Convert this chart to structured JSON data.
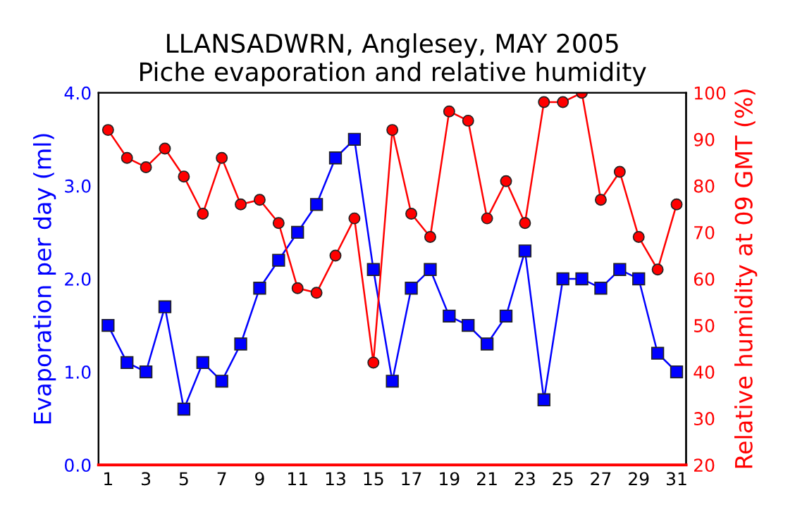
{
  "chart_data": {
    "type": "line",
    "title": "LLANSADWRN, Anglesey, MAY 2005\nPiche evaporation and relative humidity",
    "xlabel": null,
    "ylabel": "Evaporation per day (ml)",
    "y2label": "Relative humidity at 09 GMT (%)",
    "x": [
      1,
      2,
      3,
      4,
      5,
      6,
      7,
      8,
      9,
      10,
      11,
      12,
      13,
      14,
      15,
      16,
      17,
      18,
      19,
      20,
      21,
      22,
      23,
      24,
      25,
      26,
      27,
      28,
      29,
      30,
      31
    ],
    "xlim": [
      0.5,
      31.5
    ],
    "xticks": [
      1,
      3,
      5,
      7,
      9,
      11,
      13,
      15,
      17,
      19,
      21,
      23,
      25,
      27,
      29,
      31
    ],
    "ylim": [
      0,
      4
    ],
    "yticks": [
      {
        "value": 0,
        "label": "0.0"
      },
      {
        "value": 1,
        "label": "1.0"
      },
      {
        "value": 2,
        "label": "2.0"
      },
      {
        "value": 3,
        "label": "3.0"
      },
      {
        "value": 4,
        "label": "4.0"
      }
    ],
    "y2lim": [
      20,
      100
    ],
    "y2ticks": [
      20,
      30,
      40,
      50,
      60,
      70,
      80,
      90,
      100
    ],
    "grid": false,
    "legend": false,
    "series": [
      {
        "color": "#0000ff",
        "marker": "square",
        "values": [
          1.5,
          1.1,
          1.0,
          1.7,
          0.6,
          1.1,
          0.9,
          1.3,
          1.9,
          2.2,
          2.5,
          2.8,
          3.3,
          3.5,
          2.1,
          0.9,
          1.9,
          2.1,
          1.6,
          1.5,
          1.3,
          1.6,
          2.3,
          0.7,
          2.0,
          2.0,
          1.9,
          2.1,
          2.0,
          1.2,
          1.0
        ]
      },
      {
        "color": "#ff0000",
        "marker": "circle",
        "axis": "y2",
        "values": [
          92,
          86,
          84,
          88,
          82,
          74,
          86,
          76,
          77,
          72,
          58,
          57,
          65,
          73,
          42,
          92,
          74,
          69,
          96,
          94,
          73,
          81,
          72,
          98,
          98,
          100,
          77,
          83,
          69,
          62,
          76
        ]
      }
    ]
  }
}
